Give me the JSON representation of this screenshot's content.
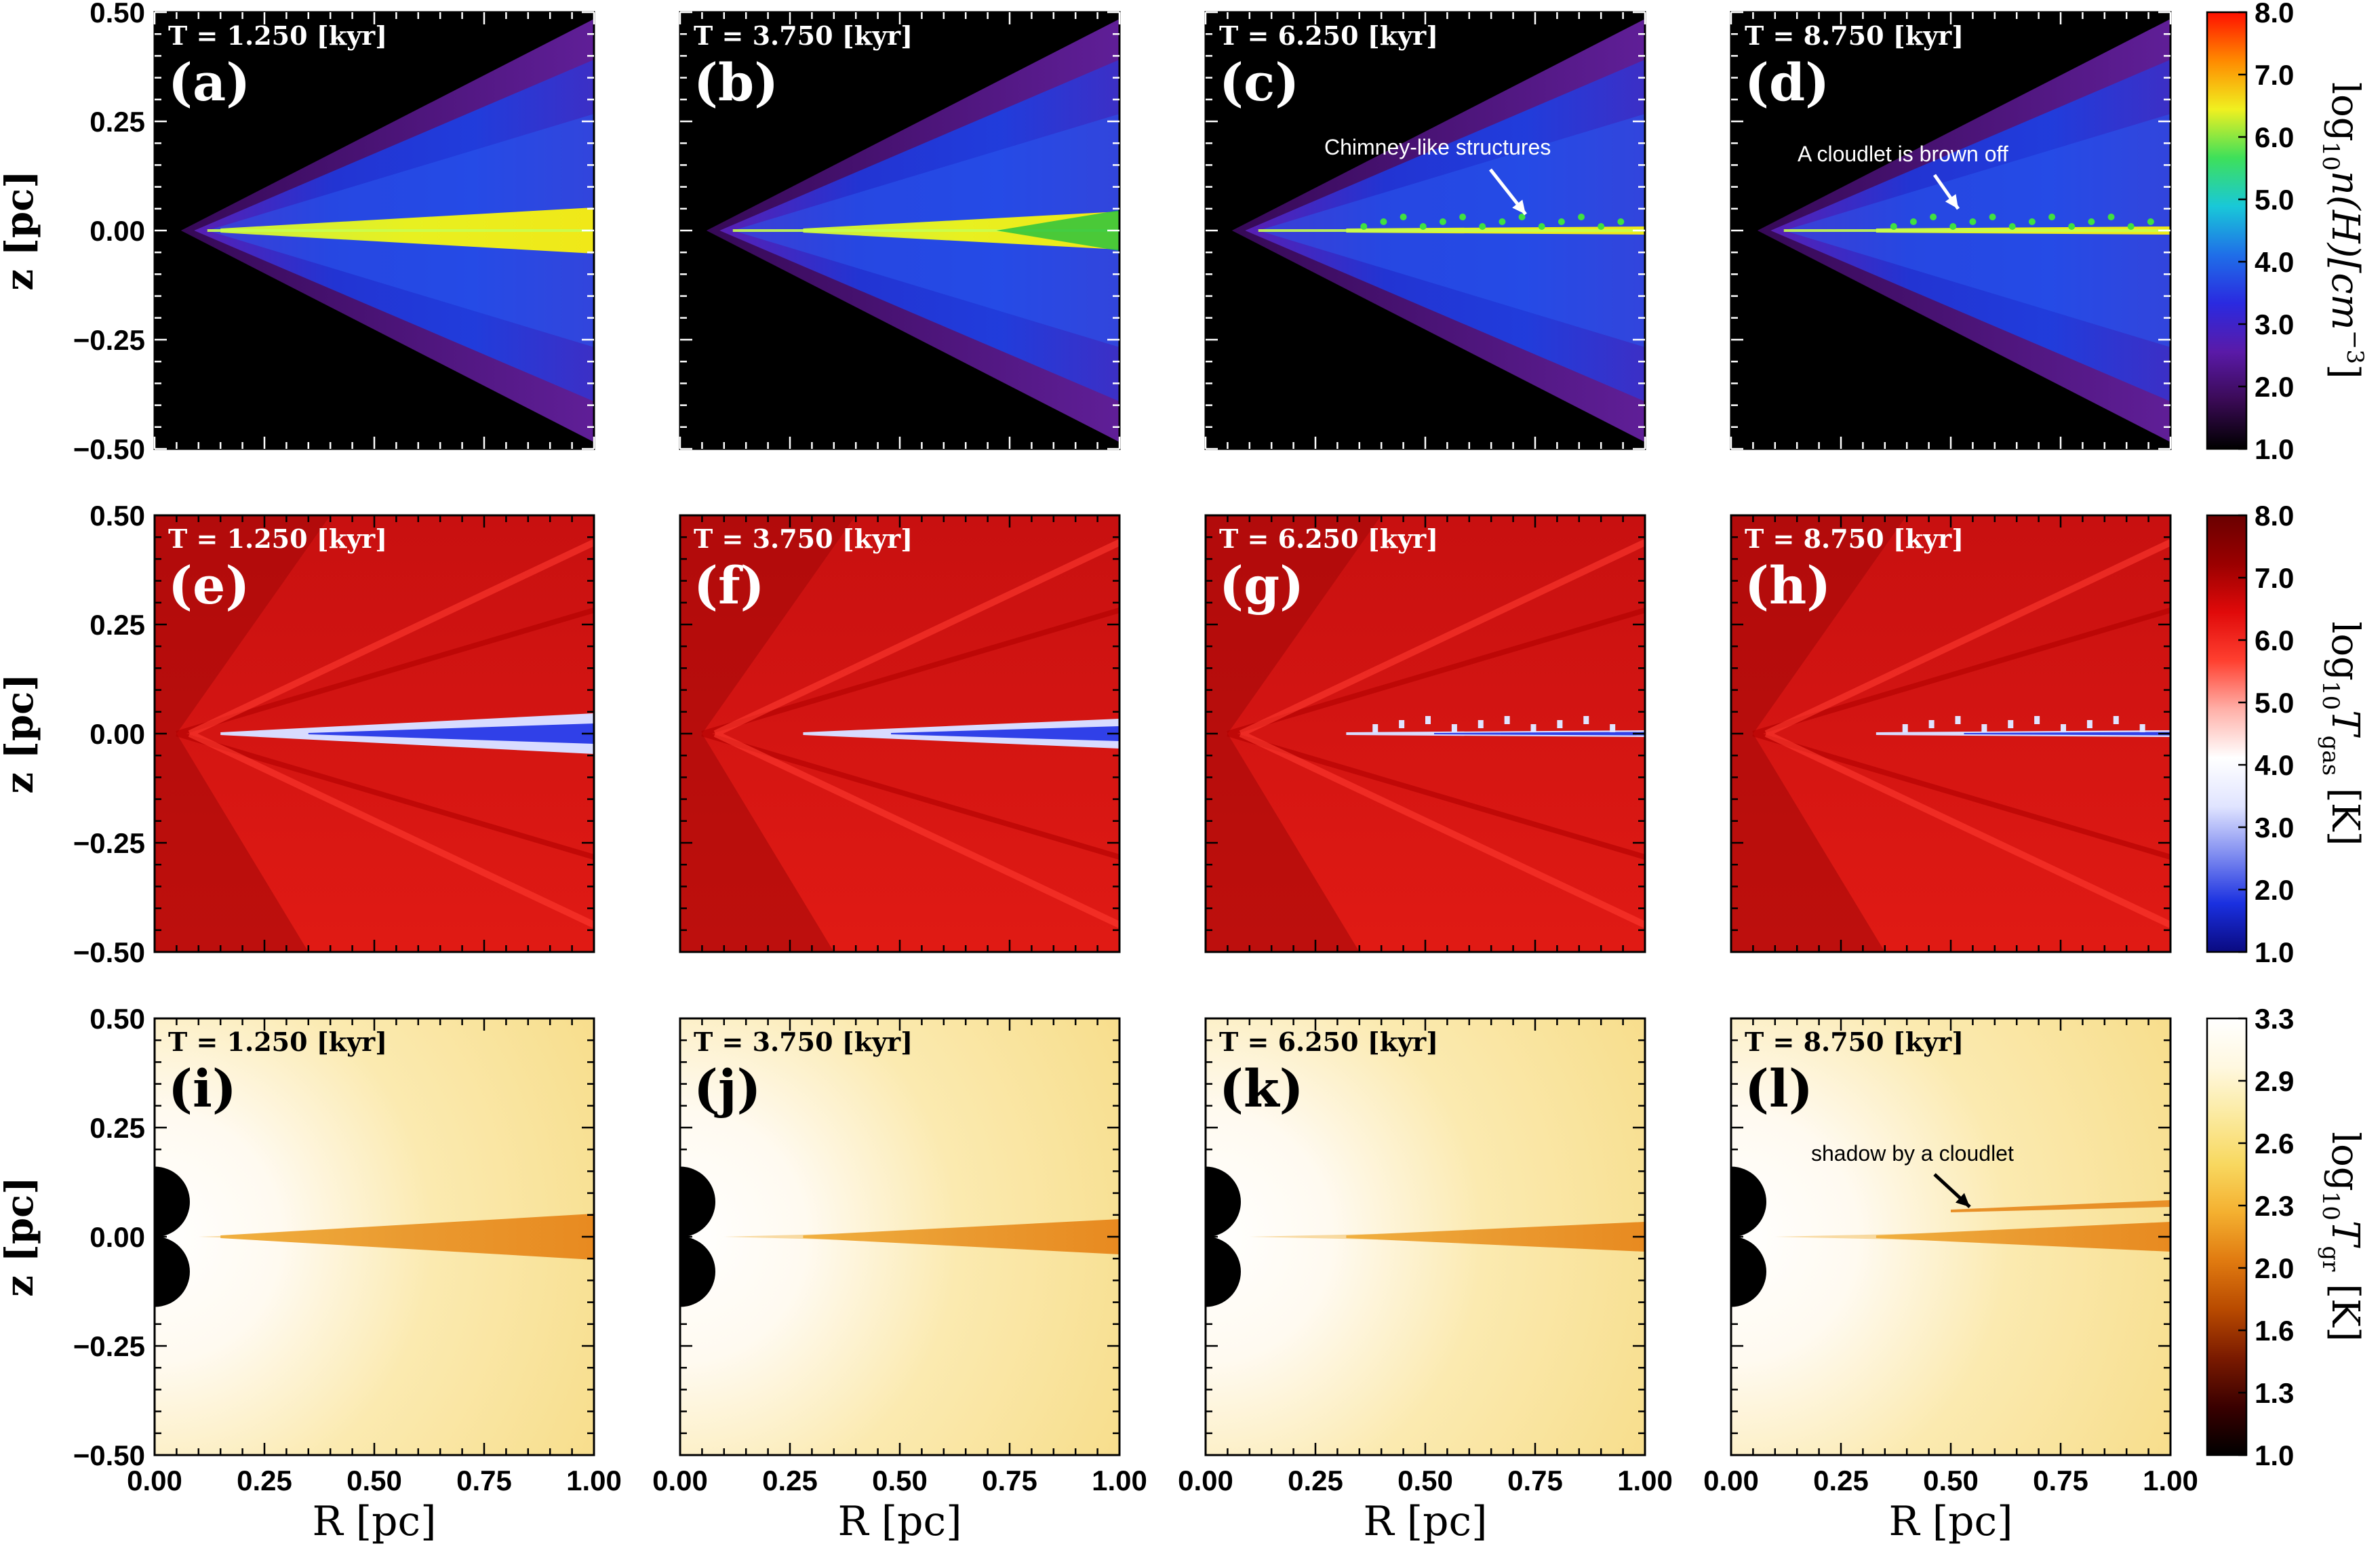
{
  "chart_data": {
    "type": "heatmap",
    "layout": "3x4 panel grid",
    "times": [
      "T =  1.250 [kyr]",
      "T =  3.750 [kyr]",
      "T =  6.250 [kyr]",
      "T =  8.750 [kyr]"
    ],
    "x_ticks": [
      "0.00",
      "0.25",
      "0.50",
      "0.75",
      "1.00"
    ],
    "y_ticks": [
      "0.50",
      "0.25",
      "0.00",
      "−0.25",
      "−0.50"
    ],
    "xlabel": "R [pc]",
    "ylabel": "z [pc]",
    "xlim": [
      0,
      1
    ],
    "ylim": [
      -0.5,
      0.5
    ],
    "rows": [
      {
        "quantity": "density",
        "panels": [
          "(a)",
          "(b)",
          "(c)",
          "(d)"
        ],
        "colorbar": {
          "label_main": "log",
          "label_sub": "10",
          "label_rest": "n(H)[cm",
          "label_sup": "−3",
          "label_end": "]",
          "ticks": [
            "8.0",
            "7.0",
            "6.0",
            "5.0",
            "4.0",
            "3.0",
            "2.0",
            "1.0"
          ],
          "range": [
            1.0,
            8.0
          ],
          "colors": [
            "#000000",
            "#3a0a55",
            "#5a1aa8",
            "#2a2ae0",
            "#1f6fe8",
            "#19c8d8",
            "#3ee05a",
            "#f0f020",
            "#ff8a00",
            "#ff1000"
          ]
        },
        "annotations": [
          {
            "panel": 2,
            "text": "Chimney-like structures"
          },
          {
            "panel": 3,
            "text": "A cloudlet is brown off"
          }
        ],
        "disk_front_R": [
          0.15,
          0.28,
          0.32,
          0.33
        ]
      },
      {
        "quantity": "gas temperature",
        "panels": [
          "(e)",
          "(f)",
          "(g)",
          "(h)"
        ],
        "colorbar": {
          "label_main": "log",
          "label_sub": "10",
          "label_rest": "T",
          "label_sup": "gas",
          "label_end": " [K]",
          "ticks": [
            "8.0",
            "7.0",
            "6.0",
            "5.0",
            "4.0",
            "3.0",
            "2.0",
            "1.0"
          ],
          "range": [
            1.0,
            8.0
          ],
          "colors": [
            "#0a0a80",
            "#1a30e0",
            "#7f8cf0",
            "#e0e4ff",
            "#ffffff",
            "#ffb0a8",
            "#ff4030",
            "#e00a0a",
            "#9a0000",
            "#6a0000"
          ]
        },
        "annotations": []
      },
      {
        "quantity": "dust temperature",
        "panels": [
          "(i)",
          "(j)",
          "(k)",
          "(l)"
        ],
        "colorbar": {
          "label_main": "log",
          "label_sub": "10",
          "label_rest": "T",
          "label_sup": "gr",
          "label_end": " [K]",
          "ticks": [
            "3.3",
            "2.9",
            "2.6",
            "2.3",
            "2.0",
            "1.6",
            "1.3",
            "1.0"
          ],
          "range": [
            1.0,
            3.3
          ],
          "colors": [
            "#000000",
            "#3a0000",
            "#7a1a00",
            "#b84a00",
            "#e07a10",
            "#f4b030",
            "#f8d860",
            "#fbeaa0",
            "#fff8e0",
            "#ffffff"
          ]
        },
        "annotations": [
          {
            "panel": 3,
            "text": "shadow by  a cloudlet"
          }
        ]
      }
    ]
  }
}
